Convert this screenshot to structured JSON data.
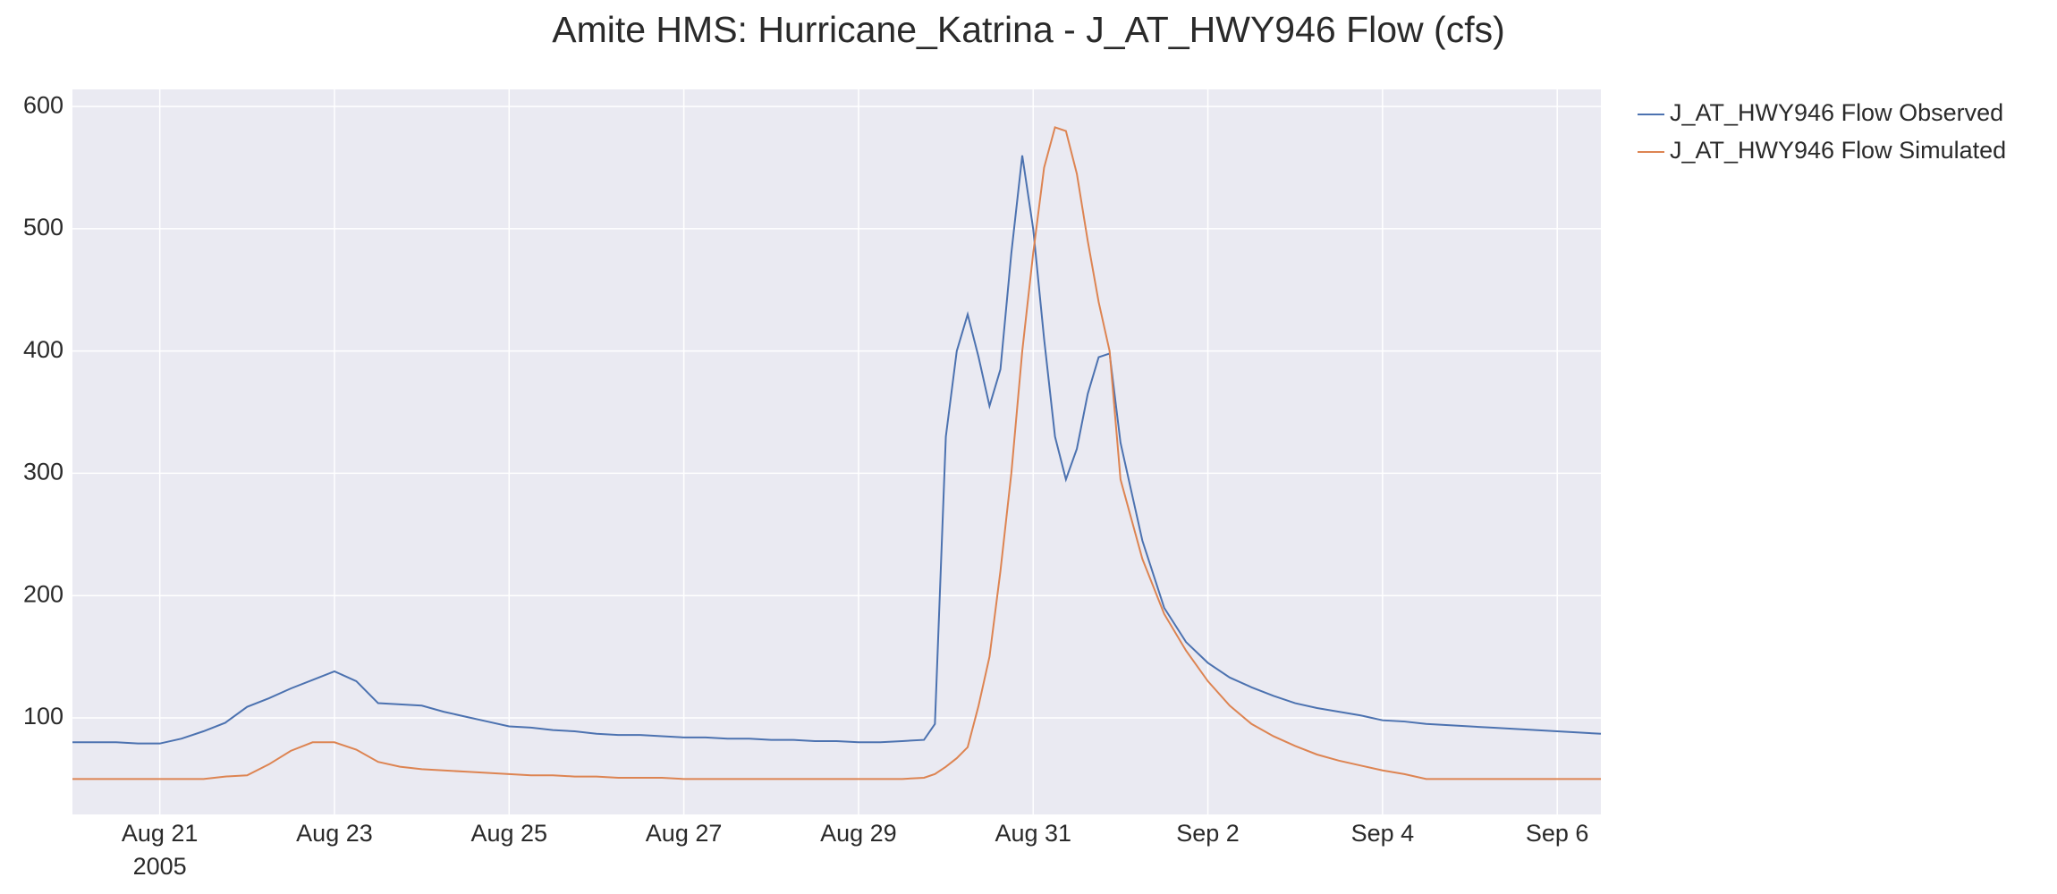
{
  "chart_data": {
    "type": "line",
    "title": "Amite HMS: Hurricane_Katrina - J_AT_HWY946 Flow (cfs)",
    "year_label": "2005",
    "x": [
      "2005-08-20T00:00",
      "2005-08-20T06:00",
      "2005-08-20T12:00",
      "2005-08-20T18:00",
      "2005-08-21T00:00",
      "2005-08-21T06:00",
      "2005-08-21T12:00",
      "2005-08-21T18:00",
      "2005-08-22T00:00",
      "2005-08-22T06:00",
      "2005-08-22T12:00",
      "2005-08-22T18:00",
      "2005-08-23T00:00",
      "2005-08-23T06:00",
      "2005-08-23T12:00",
      "2005-08-23T18:00",
      "2005-08-24T00:00",
      "2005-08-24T06:00",
      "2005-08-24T12:00",
      "2005-08-24T18:00",
      "2005-08-25T00:00",
      "2005-08-25T06:00",
      "2005-08-25T12:00",
      "2005-08-25T18:00",
      "2005-08-26T00:00",
      "2005-08-26T06:00",
      "2005-08-26T12:00",
      "2005-08-26T18:00",
      "2005-08-27T00:00",
      "2005-08-27T06:00",
      "2005-08-27T12:00",
      "2005-08-27T18:00",
      "2005-08-28T00:00",
      "2005-08-28T06:00",
      "2005-08-28T12:00",
      "2005-08-28T18:00",
      "2005-08-29T00:00",
      "2005-08-29T06:00",
      "2005-08-29T12:00",
      "2005-08-29T18:00",
      "2005-08-29T21:00",
      "2005-08-30T00:00",
      "2005-08-30T03:00",
      "2005-08-30T06:00",
      "2005-08-30T09:00",
      "2005-08-30T12:00",
      "2005-08-30T15:00",
      "2005-08-30T18:00",
      "2005-08-30T21:00",
      "2005-08-31T00:00",
      "2005-08-31T03:00",
      "2005-08-31T06:00",
      "2005-08-31T09:00",
      "2005-08-31T12:00",
      "2005-08-31T15:00",
      "2005-08-31T18:00",
      "2005-08-31T21:00",
      "2005-09-01T00:00",
      "2005-09-01T06:00",
      "2005-09-01T12:00",
      "2005-09-01T18:00",
      "2005-09-02T00:00",
      "2005-09-02T06:00",
      "2005-09-02T12:00",
      "2005-09-02T18:00",
      "2005-09-03T00:00",
      "2005-09-03T06:00",
      "2005-09-03T12:00",
      "2005-09-03T18:00",
      "2005-09-04T00:00",
      "2005-09-04T06:00",
      "2005-09-04T12:00",
      "2005-09-04T18:00",
      "2005-09-05T00:00",
      "2005-09-05T06:00",
      "2005-09-05T12:00",
      "2005-09-05T18:00",
      "2005-09-06T00:00",
      "2005-09-06T06:00",
      "2005-09-06T12:00"
    ],
    "series": [
      {
        "name": "J_AT_HWY946 Flow Observed",
        "color": "#4c72b0",
        "values": [
          80,
          80,
          80,
          79,
          79,
          83,
          89,
          96,
          109,
          116,
          124,
          131,
          138,
          130,
          112,
          111,
          110,
          105,
          101,
          97,
          93,
          92,
          90,
          89,
          87,
          86,
          86,
          85,
          84,
          84,
          83,
          83,
          82,
          82,
          81,
          81,
          80,
          80,
          81,
          82,
          95,
          330,
          400,
          430,
          395,
          355,
          385,
          480,
          560,
          500,
          410,
          330,
          295,
          320,
          365,
          395,
          398,
          325,
          245,
          190,
          162,
          145,
          133,
          125,
          118,
          112,
          108,
          105,
          102,
          98,
          97,
          95,
          94,
          93,
          92,
          91,
          90,
          89,
          88,
          87
        ]
      },
      {
        "name": "J_AT_HWY946 Flow Simulated",
        "color": "#dd8452",
        "values": [
          50,
          50,
          50,
          50,
          50,
          50,
          50,
          52,
          53,
          62,
          73,
          80,
          80,
          74,
          64,
          60,
          58,
          57,
          56,
          55,
          54,
          53,
          53,
          52,
          52,
          51,
          51,
          51,
          50,
          50,
          50,
          50,
          50,
          50,
          50,
          50,
          50,
          50,
          50,
          51,
          54,
          60,
          67,
          76,
          110,
          150,
          220,
          300,
          400,
          480,
          550,
          583,
          580,
          545,
          490,
          440,
          400,
          295,
          230,
          185,
          155,
          130,
          110,
          95,
          85,
          77,
          70,
          65,
          61,
          57,
          54,
          50,
          50,
          50,
          50,
          50,
          50,
          50,
          50,
          50
        ]
      }
    ],
    "xlim": [
      "2005-08-20T00:00",
      "2005-09-06T12:00"
    ],
    "xticks": [
      {
        "value": "2005-08-21T00:00",
        "label": "Aug 21"
      },
      {
        "value": "2005-08-23T00:00",
        "label": "Aug 23"
      },
      {
        "value": "2005-08-25T00:00",
        "label": "Aug 25"
      },
      {
        "value": "2005-08-27T00:00",
        "label": "Aug 27"
      },
      {
        "value": "2005-08-29T00:00",
        "label": "Aug 29"
      },
      {
        "value": "2005-08-31T00:00",
        "label": "Aug 31"
      },
      {
        "value": "2005-09-02T00:00",
        "label": "Sep 2"
      },
      {
        "value": "2005-09-04T00:00",
        "label": "Sep 4"
      },
      {
        "value": "2005-09-06T00:00",
        "label": "Sep 6"
      }
    ],
    "ylim": [
      21,
      614
    ],
    "yticks": [
      100,
      200,
      300,
      400,
      500,
      600
    ],
    "grid": true,
    "legend": "outside-right"
  }
}
